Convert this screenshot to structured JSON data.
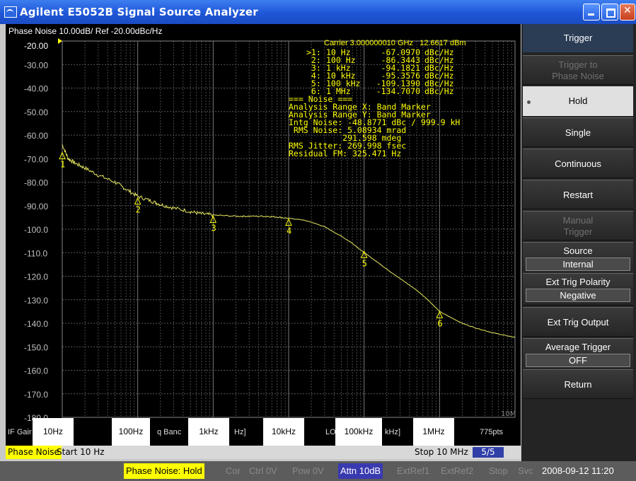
{
  "window": {
    "title": "Agilent E5052B Signal Source Analyzer"
  },
  "chart_header": {
    "title": "Phase Noise 10.00dB/ Ref -20.00dBc/Hz",
    "ref_value": "-20.00",
    "carrier_freq": "Carrier 3.000000010 GHz",
    "carrier_power": "12.6617 dBm"
  },
  "marker_table": [
    {
      "id": ">1:",
      "freq": "10 Hz",
      "value": "-67.0970",
      "unit": "dBc/Hz"
    },
    {
      "id": " 2:",
      "freq": "100 Hz",
      "value": "-86.3443",
      "unit": "dBc/Hz"
    },
    {
      "id": " 3:",
      "freq": "1 kHz",
      "value": "-94.1821",
      "unit": "dBc/Hz"
    },
    {
      "id": " 4:",
      "freq": "10 kHz",
      "value": "-95.3576",
      "unit": "dBc/Hz"
    },
    {
      "id": " 5:",
      "freq": "100 kHz",
      "value": "-109.1390",
      "unit": "dBc/Hz"
    },
    {
      "id": " 6:",
      "freq": "1 MHz",
      "value": "-134.7070",
      "unit": "dBc/Hz"
    }
  ],
  "noise_summary": [
    "=== Noise ===",
    "Analysis Range X: Band Marker",
    "Analysis Range Y: Band Marker",
    "Intg Noise: -48.8771 dBc / 999.9 kH",
    " RMS Noise: 5.08934 mrad",
    "           291.598 mdeg",
    "RMS Jitter: 269.998 fsec",
    "Residual FM: 325.471 Hz"
  ],
  "chart_data": {
    "type": "line",
    "title": "Phase Noise 10.00dB/ Ref -20.00dBc/Hz",
    "xscale": "log",
    "xlim": [
      10,
      10000000
    ],
    "ylim": [
      -180,
      -20
    ],
    "grid": true,
    "yticks": [
      "-20.00",
      "-30.00",
      "-40.00",
      "-50.00",
      "-60.00",
      "-70.00",
      "-80.00",
      "-90.00",
      "-100.0",
      "-110.0",
      "-120.0",
      "-130.0",
      "-140.0",
      "-150.0",
      "-160.0",
      "-170.0",
      "-180.0"
    ],
    "x_right_label": "10M",
    "series": [
      {
        "color": "#e8e860",
        "x": [
          10,
          12,
          15,
          20,
          30,
          50,
          70,
          100,
          150,
          200,
          300,
          500,
          700,
          1000,
          2000,
          3000,
          5000,
          7000,
          10000,
          15000,
          20000,
          30000,
          50000,
          70000,
          100000,
          150000,
          200000,
          300000,
          500000,
          700000,
          1000000,
          1500000,
          2000000,
          3000000,
          5000000,
          7000000,
          10000000
        ],
        "y": [
          -64,
          -70,
          -72,
          -74,
          -77,
          -80,
          -83,
          -86,
          -88,
          -89.5,
          -91,
          -92.5,
          -93.5,
          -94,
          -94.5,
          -94.5,
          -94.5,
          -94.8,
          -95.4,
          -96,
          -97,
          -99,
          -103,
          -106,
          -110,
          -114,
          -117,
          -121,
          -126,
          -130,
          -135,
          -138,
          -140,
          -142,
          -144,
          -145,
          -146
        ]
      }
    ],
    "markers": [
      {
        "label": "1",
        "x": 10,
        "y": -67.097
      },
      {
        "label": "2",
        "x": 100,
        "y": -86.3443
      },
      {
        "label": "3",
        "x": 1000,
        "y": -94.1821
      },
      {
        "label": "4",
        "x": 10000,
        "y": -95.3576
      },
      {
        "label": "5",
        "x": 100000,
        "y": -109.139
      },
      {
        "label": "6",
        "x": 1000000,
        "y": -134.707
      }
    ]
  },
  "freq_labels": [
    "10Hz",
    "100Hz",
    "1kHz",
    "10kHz",
    "100kHz",
    "1MHz"
  ],
  "status_row": {
    "if_gain": "IF Gair",
    "band": "q Banc",
    "hz": "Hz]",
    "lo": "LO",
    "khz": "kHz]",
    "points": "775pts"
  },
  "channel_row": {
    "name": "Phase Noise",
    "start": "Start 10 Hz",
    "stop": "Stop 10 MHz",
    "trace": "5/5"
  },
  "bottom_bar": {
    "mode": "Phase Noise: Hold",
    "cor": "Cor",
    "ctrl": "Ctrl  0V",
    "pow": "Pow  0V",
    "attn": "Attn 10dB",
    "extref1": "ExtRef1",
    "extref2": "ExtRef2",
    "stop": "Stop",
    "svc": "Svc",
    "datetime": "2008-09-12 11:20"
  },
  "softkeys": {
    "header": "Trigger",
    "trigger_to": "Trigger to\nPhase Noise",
    "hold": "Hold",
    "single": "Single",
    "continuous": "Continuous",
    "restart": "Restart",
    "manual": "Manual\nTrigger",
    "source": "Source",
    "source_val": "Internal",
    "ext_trig_polarity": "Ext Trig Polarity",
    "ext_trig_polarity_val": "Negative",
    "ext_trig_output": "Ext Trig Output",
    "average_trigger": "Average Trigger",
    "average_trigger_val": "OFF",
    "return": "Return"
  }
}
